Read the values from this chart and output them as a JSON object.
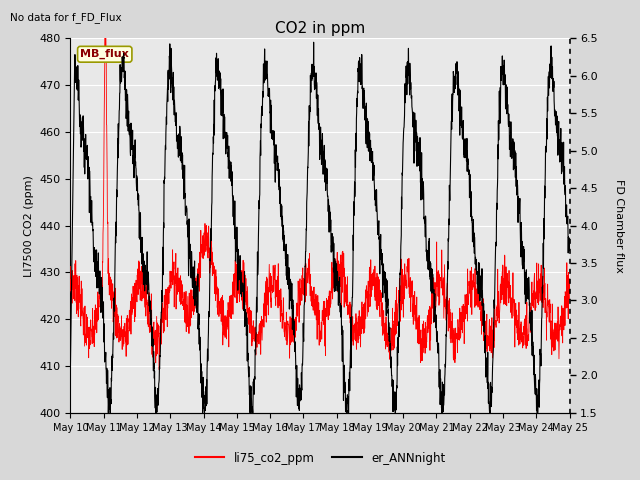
{
  "title": "CO2 in ppm",
  "ylabel_left": "LI7500 CO2 (ppm)",
  "ylabel_right": "FD Chamber flux",
  "left_label_top": "No data for f_FD_Flux",
  "box_label": "MB_flux",
  "legend_labels": [
    "li75_co2_ppm",
    "er_ANNnight"
  ],
  "ylim_left": [
    400,
    480
  ],
  "ylim_right": [
    1.5,
    6.5
  ],
  "xtick_labels": [
    "May 10",
    "May 11",
    "May 12",
    "May 13",
    "May 14",
    "May 15",
    "May 16",
    "May 17",
    "May 18",
    "May 19",
    "May 20",
    "May 21",
    "May 22",
    "May 23",
    "May 24",
    "May 25"
  ],
  "background_color": "#d8d8d8",
  "plot_bg_color": "#e8e8e8",
  "figsize": [
    6.4,
    4.8
  ],
  "dpi": 100
}
